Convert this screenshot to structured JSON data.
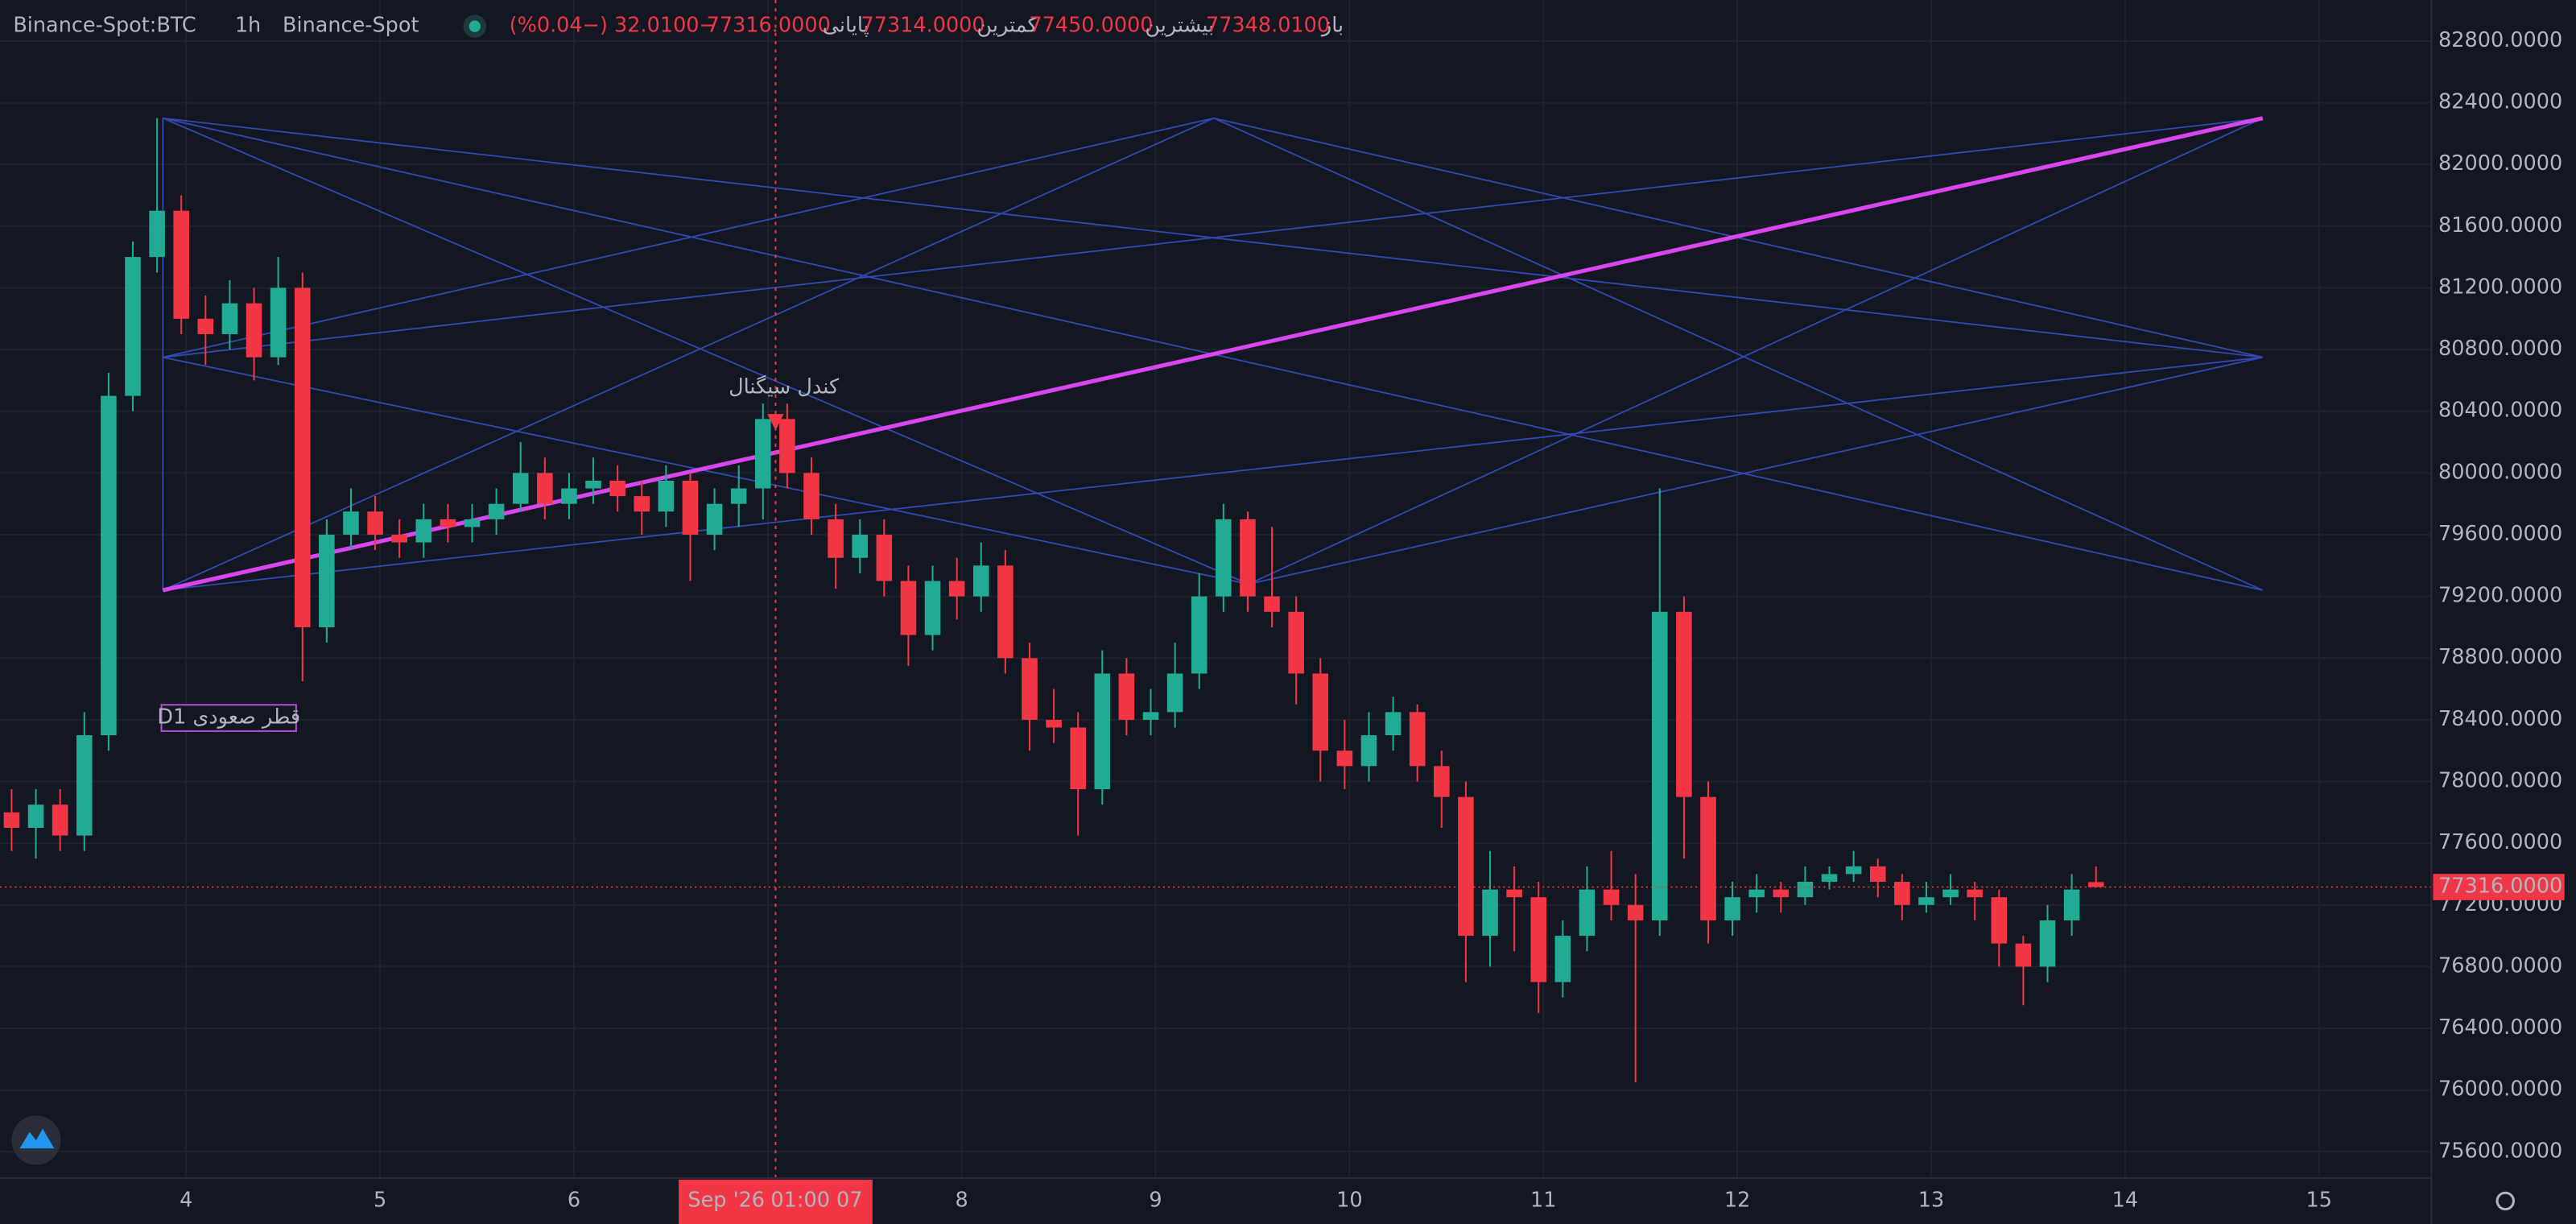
{
  "chart_data": {
    "type": "candlestick",
    "symbol": "Binance-Spot:BTC",
    "interval": "1h",
    "exchange": "Binance-Spot",
    "ohlc_legend": [
      {
        "label": "باز",
        "value": "77348.0100"
      },
      {
        "label": "بیشترین",
        "value": "77450.0000"
      },
      {
        "label": "کمترین",
        "value": "77314.0000"
      },
      {
        "label": "پایانی",
        "value": "77316.0000"
      }
    ],
    "change": "−32.0100 (−0.04%)",
    "up_color": "#22ab94",
    "down_color": "#f23645",
    "xlim": [
      3.04,
      15.58
    ],
    "xticks": [
      4,
      5,
      6,
      7,
      8,
      9,
      10,
      11,
      12,
      13,
      14,
      15
    ],
    "ylim": [
      75430,
      83066
    ],
    "yticks": [
      {
        "value": 75600,
        "label": "75600.0000"
      },
      {
        "value": 76000,
        "label": "76000.0000"
      },
      {
        "value": 76400,
        "label": "76400.0000"
      },
      {
        "value": 76800,
        "label": "76800.0000"
      },
      {
        "value": 77200,
        "label": "77200.0000"
      },
      {
        "value": 77600,
        "label": "77600.0000"
      },
      {
        "value": 78000,
        "label": "78000.0000"
      },
      {
        "value": 78400,
        "label": "78400.0000"
      },
      {
        "value": 78800,
        "label": "78800.0000"
      },
      {
        "value": 79200,
        "label": "79200.0000"
      },
      {
        "value": 79600,
        "label": "79600.0000"
      },
      {
        "value": 80000,
        "label": "80000.0000"
      },
      {
        "value": 80400,
        "label": "80400.0000"
      },
      {
        "value": 80800,
        "label": "80800.0000"
      },
      {
        "value": 81200,
        "label": "81200.0000"
      },
      {
        "value": 81600,
        "label": "81600.0000"
      },
      {
        "value": 82000,
        "label": "82000.0000"
      },
      {
        "value": 82400,
        "label": "82400.0000"
      },
      {
        "value": 82800,
        "label": "82800.0000"
      }
    ],
    "grid": true,
    "last_price": {
      "value": 77316,
      "label": "77316.0000"
    },
    "crosshair": {
      "x": 7.04,
      "date_label": "Sep '26",
      "time_label": "01:00 07"
    },
    "candles": [
      [
        3.1,
        77800,
        77950,
        77550,
        77700
      ],
      [
        3.225,
        77700,
        77950,
        77500,
        77850
      ],
      [
        3.35,
        77850,
        77950,
        77550,
        77650
      ],
      [
        3.475,
        77650,
        78450,
        77550,
        78300
      ],
      [
        3.6,
        78300,
        80650,
        78200,
        80500
      ],
      [
        3.725,
        80500,
        81500,
        80400,
        81400
      ],
      [
        3.85,
        81400,
        82300,
        81300,
        81700
      ],
      [
        3.975,
        81700,
        81800,
        80900,
        81000
      ],
      [
        4.1,
        81000,
        81150,
        80700,
        80900
      ],
      [
        4.225,
        80900,
        81250,
        80800,
        81100
      ],
      [
        4.35,
        81100,
        81200,
        80600,
        80750
      ],
      [
        4.475,
        80750,
        81400,
        80700,
        81200
      ],
      [
        4.6,
        81200,
        81300,
        78650,
        79000
      ],
      [
        4.725,
        79000,
        79700,
        78900,
        79600
      ],
      [
        4.85,
        79600,
        79900,
        79500,
        79750
      ],
      [
        4.975,
        79750,
        79850,
        79500,
        79600
      ],
      [
        5.1,
        79600,
        79700,
        79450,
        79550
      ],
      [
        5.225,
        79550,
        79800,
        79450,
        79700
      ],
      [
        5.35,
        79700,
        79800,
        79550,
        79650
      ],
      [
        5.475,
        79650,
        79800,
        79550,
        79700
      ],
      [
        5.6,
        79700,
        79900,
        79600,
        79800
      ],
      [
        5.725,
        79800,
        80200,
        79750,
        80000
      ],
      [
        5.85,
        80000,
        80100,
        79700,
        79800
      ],
      [
        5.975,
        79800,
        80000,
        79700,
        79900
      ],
      [
        6.1,
        79900,
        80100,
        79800,
        79950
      ],
      [
        6.225,
        79950,
        80050,
        79750,
        79850
      ],
      [
        6.35,
        79850,
        79950,
        79600,
        79750
      ],
      [
        6.475,
        79750,
        80050,
        79650,
        79950
      ],
      [
        6.6,
        79950,
        80000,
        79300,
        79600
      ],
      [
        6.725,
        79600,
        79900,
        79500,
        79800
      ],
      [
        6.85,
        79800,
        80050,
        79650,
        79900
      ],
      [
        6.975,
        79900,
        80450,
        79700,
        80350
      ],
      [
        7.1,
        80350,
        80450,
        79900,
        80000
      ],
      [
        7.225,
        80000,
        80100,
        79600,
        79700
      ],
      [
        7.35,
        79700,
        79800,
        79250,
        79450
      ],
      [
        7.475,
        79450,
        79700,
        79350,
        79600
      ],
      [
        7.6,
        79600,
        79700,
        79200,
        79300
      ],
      [
        7.725,
        79300,
        79400,
        78750,
        78950
      ],
      [
        7.85,
        78950,
        79400,
        78850,
        79300
      ],
      [
        7.975,
        79300,
        79450,
        79050,
        79200
      ],
      [
        8.1,
        79200,
        79550,
        79100,
        79400
      ],
      [
        8.225,
        79400,
        79500,
        78700,
        78800
      ],
      [
        8.35,
        78800,
        78900,
        78200,
        78400
      ],
      [
        8.475,
        78400,
        78600,
        78250,
        78350
      ],
      [
        8.6,
        78350,
        78450,
        77650,
        77950
      ],
      [
        8.725,
        77950,
        78850,
        77850,
        78700
      ],
      [
        8.85,
        78700,
        78800,
        78300,
        78400
      ],
      [
        8.975,
        78400,
        78600,
        78300,
        78450
      ],
      [
        9.1,
        78450,
        78900,
        78350,
        78700
      ],
      [
        9.225,
        78700,
        79350,
        78600,
        79200
      ],
      [
        9.35,
        79200,
        79800,
        79100,
        79700
      ],
      [
        9.475,
        79700,
        79750,
        79100,
        79200
      ],
      [
        9.6,
        79200,
        79650,
        79000,
        79100
      ],
      [
        9.725,
        79100,
        79200,
        78500,
        78700
      ],
      [
        9.85,
        78700,
        78800,
        78000,
        78200
      ],
      [
        9.975,
        78200,
        78400,
        77950,
        78100
      ],
      [
        10.1,
        78100,
        78450,
        78000,
        78300
      ],
      [
        10.225,
        78300,
        78550,
        78200,
        78450
      ],
      [
        10.35,
        78450,
        78500,
        78000,
        78100
      ],
      [
        10.475,
        78100,
        78200,
        77700,
        77900
      ],
      [
        10.6,
        77900,
        78000,
        76700,
        77000
      ],
      [
        10.725,
        77000,
        77550,
        76800,
        77300
      ],
      [
        10.85,
        77300,
        77450,
        76900,
        77250
      ],
      [
        10.975,
        77250,
        77350,
        76500,
        76700
      ],
      [
        11.1,
        76700,
        77100,
        76600,
        77000
      ],
      [
        11.225,
        77000,
        77450,
        76900,
        77300
      ],
      [
        11.35,
        77300,
        77550,
        77100,
        77200
      ],
      [
        11.475,
        77200,
        77400,
        76050,
        77100
      ],
      [
        11.6,
        77100,
        79900,
        77000,
        79100
      ],
      [
        11.725,
        79100,
        79200,
        77500,
        77900
      ],
      [
        11.85,
        77900,
        78000,
        76950,
        77100
      ],
      [
        11.975,
        77100,
        77350,
        77000,
        77250
      ],
      [
        12.1,
        77250,
        77400,
        77150,
        77300
      ],
      [
        12.225,
        77300,
        77350,
        77150,
        77250
      ],
      [
        12.35,
        77250,
        77450,
        77200,
        77350
      ],
      [
        12.475,
        77350,
        77450,
        77300,
        77400
      ],
      [
        12.6,
        77400,
        77550,
        77350,
        77450
      ],
      [
        12.725,
        77450,
        77500,
        77250,
        77350
      ],
      [
        12.85,
        77350,
        77400,
        77100,
        77200
      ],
      [
        12.975,
        77200,
        77350,
        77150,
        77250
      ],
      [
        13.1,
        77250,
        77400,
        77200,
        77300
      ],
      [
        13.225,
        77300,
        77350,
        77100,
        77250
      ],
      [
        13.35,
        77250,
        77300,
        76800,
        76950
      ],
      [
        13.475,
        76950,
        77000,
        76550,
        76800
      ],
      [
        13.6,
        76800,
        77200,
        76700,
        77100
      ],
      [
        13.725,
        77100,
        77400,
        77000,
        77300
      ],
      [
        13.85,
        77348.01,
        77450,
        77314,
        77316
      ]
    ],
    "lines": [
      {
        "color": "#3149b0",
        "points": [
          [
            3.88,
            82300
          ],
          [
            14.71,
            80750
          ]
        ]
      },
      {
        "color": "#3149b0",
        "points": [
          [
            3.88,
            82300
          ],
          [
            14.71,
            79240
          ]
        ]
      },
      {
        "color": "#3149b0",
        "points": [
          [
            3.88,
            82300
          ],
          [
            9.48,
            79280
          ]
        ]
      },
      {
        "color": "#3149b0",
        "points": [
          [
            3.88,
            80750
          ],
          [
            9.3,
            82300
          ]
        ]
      },
      {
        "color": "#3149b0",
        "points": [
          [
            3.88,
            80750
          ],
          [
            14.71,
            82300
          ]
        ]
      },
      {
        "color": "#3149b0",
        "points": [
          [
            3.88,
            80750
          ],
          [
            9.48,
            79280
          ]
        ]
      },
      {
        "color": "#3149b0",
        "points": [
          [
            3.88,
            79240
          ],
          [
            9.3,
            82300
          ]
        ]
      },
      {
        "color": "#3149b0",
        "points": [
          [
            3.88,
            79240
          ],
          [
            14.71,
            80750
          ]
        ]
      },
      {
        "color": "#3149b0",
        "points": [
          [
            9.3,
            82300
          ],
          [
            14.71,
            80750
          ]
        ]
      },
      {
        "color": "#3149b0",
        "points": [
          [
            9.3,
            82300
          ],
          [
            14.71,
            79240
          ]
        ]
      },
      {
        "color": "#3149b0",
        "points": [
          [
            9.48,
            79280
          ],
          [
            14.71,
            82300
          ]
        ]
      },
      {
        "color": "#3149b0",
        "points": [
          [
            9.48,
            79280
          ],
          [
            14.71,
            80750
          ]
        ]
      },
      {
        "color": "#3149b0",
        "points": [
          [
            3.88,
            82300
          ],
          [
            3.88,
            79240
          ]
        ]
      },
      {
        "color": "#d946ef",
        "points": [
          [
            3.88,
            79240
          ],
          [
            14.71,
            82300
          ]
        ]
      }
    ],
    "annotations": [
      {
        "text": "کندل سیگنال",
        "x": 7.04,
        "y": 80553,
        "color": "#f23645"
      },
      {
        "text": "D1 قطر صعودی",
        "x": 4.22,
        "y": 78412,
        "color": "#ffffff",
        "border": "#b44bd6"
      }
    ]
  }
}
